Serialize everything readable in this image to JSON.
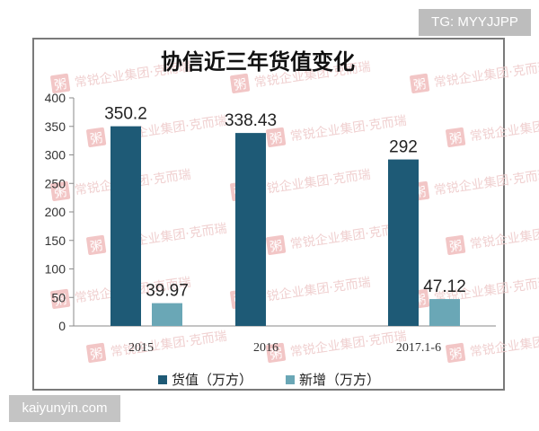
{
  "badges": {
    "top_right": "TG: MYYJJPP",
    "bottom_left": "kaiyunyin.com"
  },
  "watermark": {
    "logo_char": "粥",
    "text": "常锐企业集团·克而瑞"
  },
  "chart_data": {
    "type": "bar",
    "title": "协信近三年货值变化",
    "xlabel": "",
    "ylabel": "",
    "categories": [
      "2015",
      "2016",
      "2017.1-6"
    ],
    "series": [
      {
        "name": "货值（万方）",
        "values": [
          350.2,
          338.43,
          292
        ],
        "data_labels": [
          "350.2",
          "338.43",
          "292"
        ],
        "color": "#1e5a76"
      },
      {
        "name": "新增（万方）",
        "values": [
          39.97,
          null,
          47.12
        ],
        "data_labels": [
          "39.97",
          "",
          "47.12"
        ],
        "color": "#6aa7b6"
      }
    ],
    "ylim": [
      0,
      400
    ],
    "yticks": [
      "0",
      "50",
      "100",
      "150",
      "200",
      "250",
      "300",
      "350",
      "400"
    ],
    "grid": false,
    "legend": "bottom"
  }
}
